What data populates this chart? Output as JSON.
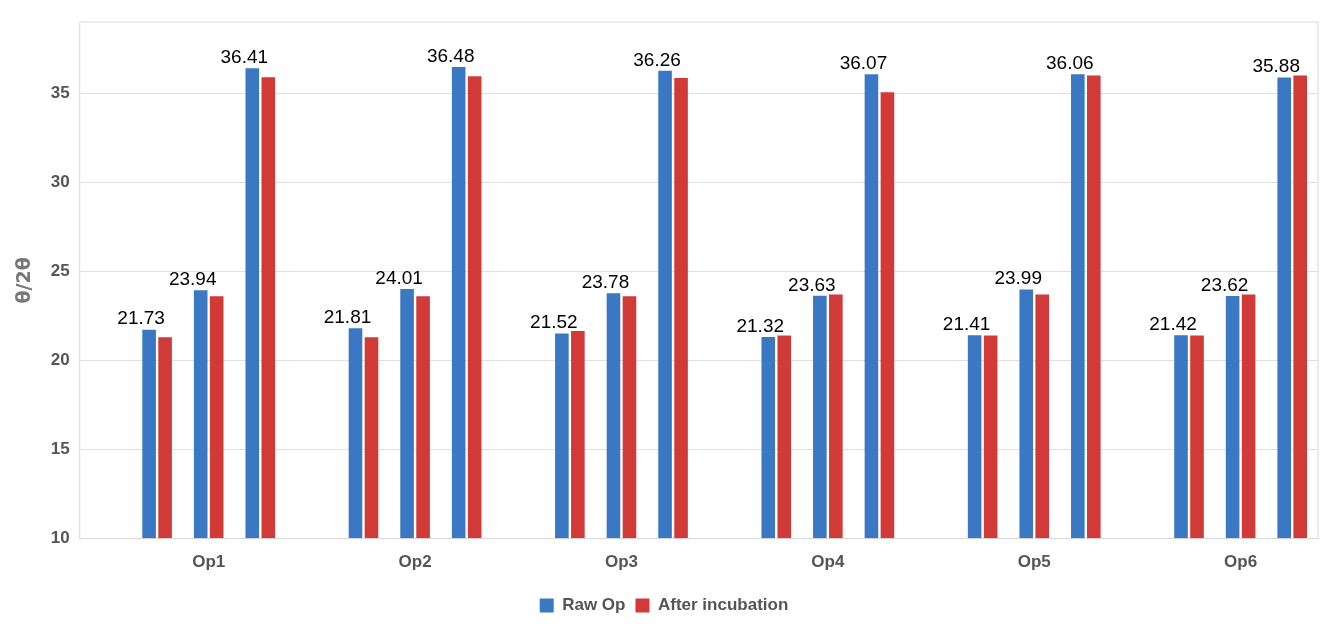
{
  "chart_data": {
    "type": "bar",
    "ylabel": "θ/2θ",
    "categories": [
      null,
      null,
      "Op1",
      null,
      null,
      null,
      "Op2",
      null,
      null,
      null,
      "Op3",
      null,
      null,
      null,
      "Op4",
      null,
      null,
      null,
      "Op5",
      null,
      null,
      null,
      "Op6",
      null
    ],
    "series": [
      {
        "name": "Raw Op",
        "color": "#3a78c4",
        "values": [
          null,
          21.73,
          23.94,
          36.41,
          null,
          21.81,
          24.01,
          36.48,
          null,
          21.52,
          23.78,
          36.26,
          null,
          21.32,
          23.63,
          36.07,
          null,
          21.41,
          23.99,
          36.06,
          null,
          21.42,
          23.62,
          35.88
        ],
        "value_labels": [
          null,
          "21.73",
          "23.94",
          "36.41",
          null,
          "21.81",
          "24.01",
          "36.48",
          null,
          "21.52",
          "23.78",
          "36.26",
          null,
          "21.32",
          "23.63",
          "36.07",
          null,
          "21.41",
          "23.99",
          "36.06",
          null,
          "21.42",
          "23.62",
          "35.88"
        ]
      },
      {
        "name": "After incubation",
        "color": "#d23a38",
        "values": [
          null,
          21.3,
          23.6,
          35.9,
          null,
          21.3,
          23.6,
          35.95,
          null,
          21.65,
          23.6,
          35.85,
          null,
          21.4,
          23.7,
          35.05,
          null,
          21.4,
          23.7,
          36.0,
          null,
          21.4,
          23.7,
          36.0
        ]
      }
    ],
    "ylim": [
      10,
      39
    ],
    "yticks": [
      10,
      15,
      20,
      25,
      30,
      35
    ],
    "grid": "y",
    "legend": "bottom"
  }
}
